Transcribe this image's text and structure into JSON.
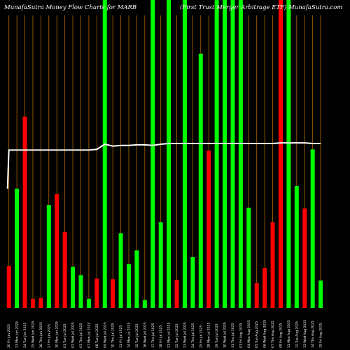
{
  "chart_data": {
    "type": "bar",
    "title_left": "MunafaSutra  Money Flow  Charts for MARB",
    "title_right": "(First Trust Merger Arbitrage  ETF) MunafaSutra.com",
    "categories": [
      "20 Fri Jun 2025",
      "23 Mon Jun 2025",
      "24 Tue Jun 2025",
      "25 Wed Jun 2025",
      "26 Thu Jun 2025",
      "27 Fri Jun 2025",
      "30 Mon Jun 2025",
      "01 Tue Jul 2025",
      "02 Wed Jul 2025",
      "03 Thu Jul 2025",
      "07 Mon Jul 2025",
      "08 Tue Jul 2025",
      "09 Wed Jul 2025",
      "10 Thu Jul 2025",
      "11 Fri Jul 2025",
      "14 Mon Jul 2025",
      "15 Tue Jul 2025",
      "16 Wed Jul 2025",
      "17 Thu Jul 2025",
      "18 Fri Jul 2025",
      "21 Mon Jul 2025",
      "22 Tue Jul 2025",
      "23 Wed Jul 2025",
      "24 Thu Jul 2025",
      "25 Fri Jul 2025",
      "28 Mon Jul 2025",
      "29 Tue Jul 2025",
      "30 Wed Jul 2025",
      "31 Thu Jul 2025",
      "01 Fri Aug 2025",
      "04 Mon Aug 2025",
      "05 Tue Aug 2025",
      "06 Wed Aug 2025",
      "07 Thu Aug 2025",
      "08 Fri Aug 2025",
      "11 Mon Aug 2025",
      "12 Tue Aug 2025",
      "13 Wed Aug 2025",
      "14 Thu Aug 2025",
      "15 Fri Aug 2025"
    ],
    "values": [
      64,
      182,
      292,
      14,
      15,
      157,
      174,
      116,
      63,
      50,
      14,
      45,
      470,
      44,
      114,
      67,
      88,
      12,
      470,
      131,
      470,
      43,
      470,
      78,
      388,
      240,
      470,
      470,
      470,
      470,
      153,
      38,
      61,
      131,
      470,
      470,
      186,
      152,
      242,
      42
    ],
    "colors": [
      "red",
      "green",
      "red",
      "red",
      "red",
      "green",
      "red",
      "red",
      "green",
      "green",
      "green",
      "red",
      "green",
      "red",
      "green",
      "green",
      "green",
      "green",
      "green",
      "green",
      "green",
      "red",
      "green",
      "green",
      "green",
      "red",
      "green",
      "green",
      "green",
      "green",
      "green",
      "red",
      "red",
      "red",
      "red",
      "green",
      "green",
      "red",
      "green",
      "green"
    ],
    "price_line": [
      241,
      241,
      241,
      241,
      241,
      241,
      241,
      241,
      241,
      241,
      241,
      242,
      250,
      247,
      248,
      248,
      249,
      249,
      248,
      250,
      251,
      251,
      251,
      251,
      251,
      251,
      251,
      251,
      251,
      251,
      251,
      251,
      251,
      251,
      252,
      252,
      252,
      252,
      251,
      251
    ],
    "price_line_start": 182,
    "ylim": [
      0,
      470
    ],
    "color_map": {
      "green": "#00ff00",
      "red": "#ff0000"
    },
    "grid": true,
    "gridline_color": "#b86b00",
    "line_color": "#ffffff"
  }
}
